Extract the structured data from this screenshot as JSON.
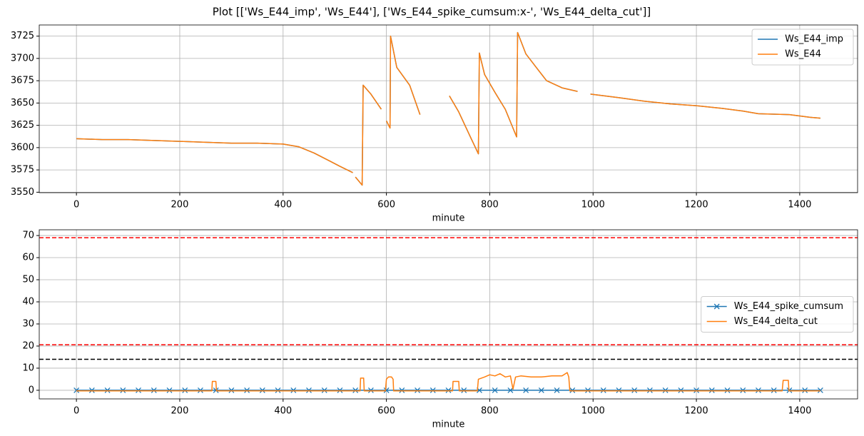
{
  "title": "Plot [['Ws_E44_imp', 'Ws_E44'], ['Ws_E44_spike_cumsum:x-', 'Ws_E44_delta_cut']]",
  "chart_data": [
    {
      "type": "line",
      "xlabel": "minute",
      "x": [
        0,
        50,
        100,
        150,
        200,
        250,
        300,
        350,
        400,
        430,
        460,
        490,
        510,
        535,
        536,
        540,
        553,
        555,
        570,
        590,
        591,
        600,
        607,
        608,
        620,
        645,
        665,
        666,
        722,
        740,
        760,
        778,
        780,
        790,
        810,
        830,
        852,
        854,
        870,
        890,
        910,
        940,
        970,
        980,
        995,
        1050,
        1100,
        1150,
        1200,
        1250,
        1290,
        1320,
        1380,
        1420,
        1440
      ],
      "series": [
        {
          "name": "Ws_E44_imp",
          "color": "#1f77b4",
          "values": [
            3610,
            3609,
            3609,
            3608,
            3607,
            3606,
            3605,
            3605,
            3604,
            3601,
            3594,
            3585,
            3579,
            3572,
            null,
            3567,
            3558,
            3670,
            3660,
            3643,
            null,
            3630,
            3622,
            3725,
            3690,
            3670,
            3637,
            null,
            3658,
            3640,
            3615,
            3593,
            3706,
            3682,
            3662,
            3643,
            3612,
            3729,
            3705,
            3690,
            3675,
            3667,
            3663,
            null,
            3660,
            3656,
            3652,
            3649,
            3647,
            3644,
            3641,
            3638,
            3637,
            3634,
            3633
          ]
        },
        {
          "name": "Ws_E44",
          "color": "#ff7f0e",
          "values": [
            3610,
            3609,
            3609,
            3608,
            3607,
            3606,
            3605,
            3605,
            3604,
            3601,
            3594,
            3585,
            3579,
            3572,
            null,
            3567,
            3558,
            3670,
            3660,
            3643,
            null,
            3630,
            3622,
            3725,
            3690,
            3670,
            3637,
            null,
            3658,
            3640,
            3615,
            3593,
            3706,
            3682,
            3662,
            3643,
            3612,
            3729,
            3705,
            3690,
            3675,
            3667,
            3663,
            null,
            3660,
            3656,
            3652,
            3649,
            3647,
            3644,
            3641,
            3638,
            3637,
            3634,
            3633
          ]
        }
      ],
      "xlim": [
        -72,
        1512
      ],
      "xticks": [
        0,
        200,
        400,
        600,
        800,
        1000,
        1200,
        1400
      ],
      "ylim": [
        3549.5,
        3737.5
      ],
      "yticks": [
        3550,
        3575,
        3600,
        3625,
        3650,
        3675,
        3700,
        3725
      ],
      "grid": true,
      "legend": "upper right"
    },
    {
      "type": "line",
      "xlabel": "minute",
      "series": [
        {
          "name": "Ws_E44_spike_cumsum",
          "color": "#1f77b4",
          "marker": "x",
          "x": [
            0,
            30,
            60,
            90,
            120,
            150,
            180,
            210,
            240,
            270,
            300,
            330,
            360,
            390,
            420,
            450,
            480,
            510,
            540,
            570,
            600,
            630,
            660,
            690,
            720,
            750,
            780,
            810,
            840,
            870,
            900,
            930,
            960,
            990,
            1020,
            1050,
            1080,
            1110,
            1140,
            1170,
            1200,
            1230,
            1260,
            1290,
            1320,
            1350,
            1380,
            1410,
            1440
          ],
          "values": [
            0,
            0,
            0,
            0,
            0,
            0,
            0,
            0,
            0,
            0,
            0,
            0,
            0,
            0,
            0,
            0,
            0,
            0,
            0,
            0,
            0,
            0,
            0,
            0,
            0,
            0,
            0,
            0,
            0,
            0,
            0,
            0,
            0,
            0,
            0,
            0,
            0,
            0,
            0,
            0,
            0,
            0,
            0,
            0,
            0,
            0,
            0,
            0,
            0
          ]
        },
        {
          "name": "Ws_E44_delta_cut",
          "color": "#ff7f0e",
          "x": [
            0,
            262,
            263,
            270,
            271,
            549,
            550,
            556,
            557,
            598,
            600,
            604,
            610,
            613,
            614,
            728,
            729,
            740,
            741,
            776,
            778,
            790,
            800,
            810,
            820,
            830,
            840,
            845,
            850,
            860,
            880,
            900,
            920,
            940,
            950,
            953,
            955,
            1366,
            1368,
            1378,
            1379,
            1440
          ],
          "values": [
            -0.3,
            -0.3,
            4,
            4,
            -0.3,
            -0.3,
            5.5,
            5.5,
            -0.3,
            -0.3,
            5,
            6,
            6,
            5,
            -0.3,
            -0.3,
            4,
            4,
            -0.3,
            -0.3,
            5,
            6,
            7,
            6.5,
            7.5,
            6,
            6.5,
            0.5,
            6,
            6.5,
            6,
            6,
            6.5,
            6.5,
            8,
            6,
            -0.3,
            -0.3,
            4.5,
            4.5,
            -0.3,
            -0.3
          ]
        }
      ],
      "hlines": [
        {
          "value": 69,
          "color": "#ff0000"
        },
        {
          "value": 20.6,
          "color": "#ff0000"
        },
        {
          "value": 14,
          "color": "#000000"
        }
      ],
      "xlim": [
        -72,
        1512
      ],
      "xticks": [
        0,
        200,
        400,
        600,
        800,
        1000,
        1200,
        1400
      ],
      "ylim": [
        -3.9,
        72.6
      ],
      "yticks": [
        0,
        10,
        20,
        30,
        40,
        50,
        60,
        70
      ],
      "grid": true,
      "legend": "center right"
    }
  ]
}
